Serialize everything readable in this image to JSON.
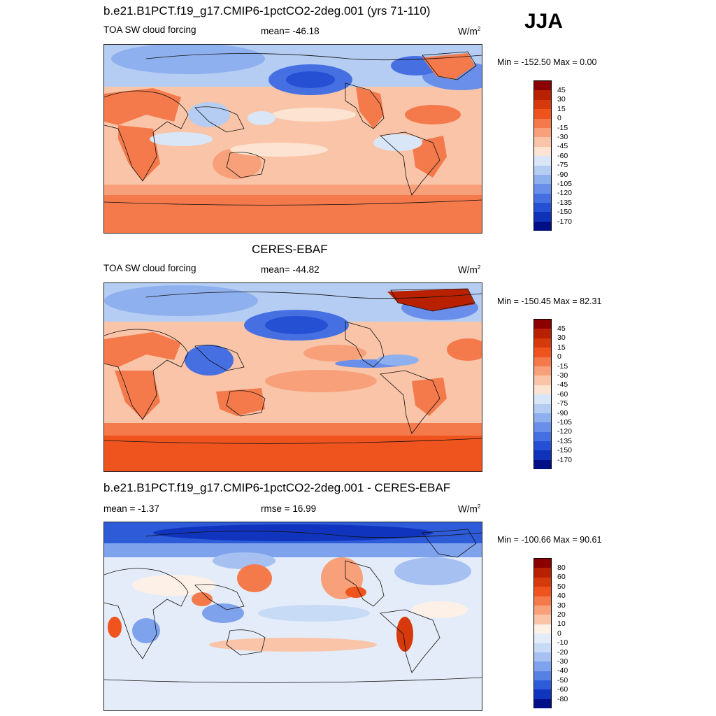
{
  "season": "JJA",
  "panels": [
    {
      "title": "b.e21.B1PCT.f19_g17.CMIP6-1pctCO2-2deg.001 (yrs 71-110)",
      "left_label": "TOA SW cloud forcing",
      "center_label": "mean= -46.18",
      "units": "W/m",
      "units_sup": "2",
      "minmax": "Min = -152.50 Max =   0.00",
      "colorbar": {
        "labels": [
          "45",
          "30",
          "15",
          "0",
          "-15",
          "-30",
          "-45",
          "-60",
          "-75",
          "-90",
          "-105",
          "-120",
          "-135",
          "-150",
          "-170"
        ],
        "colors": [
          "#8b0000",
          "#b82000",
          "#d63a0c",
          "#f0541e",
          "#f47a4c",
          "#f7a07a",
          "#f9c4a7",
          "#fde4d2",
          "#d8e6f8",
          "#b5cdf3",
          "#8fb0ef",
          "#6a8fea",
          "#4670e2",
          "#2550d4",
          "#1032b8",
          "#000f86"
        ]
      }
    },
    {
      "title": "CERES-EBAF",
      "left_label": "TOA SW cloud forcing",
      "center_label": "mean= -44.82",
      "units": "W/m",
      "units_sup": "2",
      "minmax": "Min = -150.45 Max =  82.31",
      "colorbar": {
        "labels": [
          "45",
          "30",
          "15",
          "0",
          "-15",
          "-30",
          "-45",
          "-60",
          "-75",
          "-90",
          "-105",
          "-120",
          "-135",
          "-150",
          "-170"
        ],
        "colors": [
          "#8b0000",
          "#b82000",
          "#d63a0c",
          "#f0541e",
          "#f47a4c",
          "#f7a07a",
          "#f9c4a7",
          "#fde4d2",
          "#d8e6f8",
          "#b5cdf3",
          "#8fb0ef",
          "#6a8fea",
          "#4670e2",
          "#2550d4",
          "#1032b8",
          "#000f86"
        ]
      }
    },
    {
      "title": "b.e21.B1PCT.f19_g17.CMIP6-1pctCO2-2deg.001 - CERES-EBAF",
      "left_label": "mean =  -1.37",
      "center_label": "rmse =  16.99",
      "units": "W/m",
      "units_sup": "2",
      "minmax": "Min = -100.66 Max =  90.61",
      "colorbar": {
        "labels": [
          "80",
          "60",
          "50",
          "40",
          "30",
          "20",
          "10",
          "0",
          "-10",
          "-20",
          "-30",
          "-40",
          "-50",
          "-60",
          "-80"
        ],
        "colors": [
          "#8b0000",
          "#b82000",
          "#d63a0c",
          "#f0541e",
          "#f47a4c",
          "#f7a07a",
          "#f9c4a7",
          "#fdf0e6",
          "#e4ecf9",
          "#c7daf6",
          "#a5c0f1",
          "#7ea2ec",
          "#5680e4",
          "#2e5cd8",
          "#1034be",
          "#000f86"
        ]
      }
    }
  ]
}
